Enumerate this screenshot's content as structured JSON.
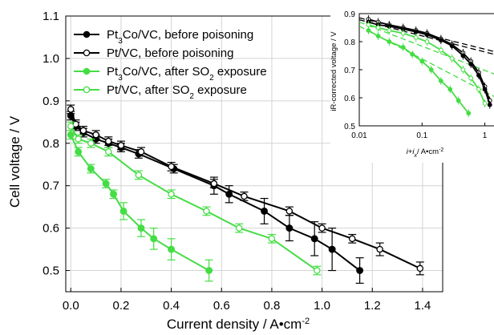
{
  "chart_data": [
    {
      "type": "line",
      "xlabel": "Current density / A•cm",
      "xlabel_sup": "-2",
      "ylabel": "Cell voltage / V",
      "xlim": [
        -0.02,
        1.48
      ],
      "ylim": [
        0.45,
        1.1
      ],
      "xticks": [
        0.0,
        0.2,
        0.4,
        0.6,
        0.8,
        1.0,
        1.2,
        1.4
      ],
      "xtick_labels": [
        "0.0",
        "0.2",
        "0.4",
        "0.6",
        "0.8",
        "1.0",
        "1.2",
        "1.4"
      ],
      "yticks": [
        0.5,
        0.6,
        0.7,
        0.8,
        0.9,
        1.0,
        1.1
      ],
      "ytick_labels": [
        "0.5",
        "0.6",
        "0.7",
        "0.8",
        "0.9",
        "1.0",
        "1.1"
      ],
      "grid": true,
      "legend_position": "top-left",
      "series": [
        {
          "name": "Pt3Co/VC, before poisoning",
          "legend": {
            "pre": "Pt",
            "sub": "3",
            "post": "Co/VC, before poisoning"
          },
          "color": "#000000",
          "marker": "filled-circle",
          "x": [
            0.0,
            0.02,
            0.05,
            0.1,
            0.15,
            0.2,
            0.27,
            0.41,
            0.57,
            0.63,
            0.77,
            0.87,
            0.97,
            1.04,
            1.15
          ],
          "y": [
            0.865,
            0.84,
            0.825,
            0.81,
            0.8,
            0.79,
            0.775,
            0.74,
            0.7,
            0.68,
            0.64,
            0.6,
            0.575,
            0.55,
            0.5
          ],
          "err": [
            0.01,
            0.01,
            0.01,
            0.01,
            0.01,
            0.01,
            0.01,
            0.01,
            0.02,
            0.02,
            0.03,
            0.03,
            0.04,
            0.05,
            0.03
          ]
        },
        {
          "name": "Pt/VC, before poisoning",
          "legend": {
            "pre": "Pt/VC, before poisoning",
            "sub": "",
            "post": ""
          },
          "color": "#000000",
          "marker": "open-circle",
          "x": [
            0.0,
            0.02,
            0.05,
            0.1,
            0.15,
            0.2,
            0.28,
            0.4,
            0.57,
            0.69,
            0.87,
            1.0,
            1.12,
            1.23,
            1.39
          ],
          "y": [
            0.88,
            0.845,
            0.83,
            0.82,
            0.805,
            0.795,
            0.78,
            0.745,
            0.705,
            0.675,
            0.64,
            0.6,
            0.575,
            0.55,
            0.505
          ],
          "err": [
            0.01,
            0.01,
            0.01,
            0.01,
            0.01,
            0.01,
            0.01,
            0.01,
            0.01,
            0.01,
            0.01,
            0.01,
            0.01,
            0.015,
            0.015
          ]
        },
        {
          "name": "Pt3Co/VC, after SO2 exposure",
          "legend": {
            "pre": "Pt",
            "sub": "3",
            "post": "Co/VC, after SO",
            "sub2": "2",
            "post2": " exposure"
          },
          "color": "#44dd44",
          "marker": "filled-circle",
          "x": [
            0.0,
            0.03,
            0.08,
            0.14,
            0.17,
            0.21,
            0.28,
            0.33,
            0.4,
            0.55
          ],
          "y": [
            0.82,
            0.78,
            0.74,
            0.705,
            0.68,
            0.64,
            0.6,
            0.575,
            0.55,
            0.5
          ],
          "err": [
            0.01,
            0.01,
            0.01,
            0.01,
            0.01,
            0.02,
            0.02,
            0.025,
            0.025,
            0.025
          ]
        },
        {
          "name": "Pt/VC, after SO2 exposure",
          "legend": {
            "pre": "Pt/VC, after SO",
            "sub": "2",
            "post": " exposure"
          },
          "color": "#44dd44",
          "marker": "open-circle",
          "x": [
            0.0,
            0.03,
            0.08,
            0.15,
            0.27,
            0.4,
            0.54,
            0.67,
            0.8,
            0.98
          ],
          "y": [
            0.84,
            0.81,
            0.8,
            0.78,
            0.725,
            0.68,
            0.64,
            0.6,
            0.575,
            0.5
          ],
          "err": [
            0.01,
            0.01,
            0.01,
            0.01,
            0.01,
            0.01,
            0.01,
            0.01,
            0.01,
            0.01
          ]
        }
      ]
    },
    {
      "type": "line",
      "xlabel": "i+i",
      "xlabel_sub": "x",
      "xlabel_post": "/ A•cm",
      "xlabel_sup": "-2",
      "ylabel": "iR-corrected voltage / V",
      "xscale": "log",
      "xlim": [
        0.01,
        1.4
      ],
      "ylim": [
        0.5,
        0.9
      ],
      "xticks": [
        0.01,
        0.1,
        1
      ],
      "xtick_labels": [
        "0.01",
        "0.1",
        "1"
      ],
      "yticks": [
        0.5,
        0.6,
        0.7,
        0.8,
        0.9
      ],
      "ytick_labels": [
        "0.5",
        "0.6",
        "0.7",
        "0.8",
        "0.9"
      ],
      "grid": false,
      "series": [
        {
          "name": "Pt/VC, before poisoning",
          "color": "#000000",
          "marker": "open-circle",
          "x": [
            0.014,
            0.02,
            0.03,
            0.05,
            0.08,
            0.12,
            0.2,
            0.3,
            0.45,
            0.6,
            0.8,
            1.0,
            1.2
          ],
          "y": [
            0.88,
            0.87,
            0.86,
            0.85,
            0.84,
            0.83,
            0.81,
            0.79,
            0.76,
            0.73,
            0.69,
            0.64,
            0.59
          ]
        },
        {
          "name": "Pt3Co/VC, before poisoning",
          "color": "#000000",
          "marker": "filled-circle",
          "x": [
            0.014,
            0.02,
            0.03,
            0.05,
            0.08,
            0.12,
            0.2,
            0.3,
            0.45,
            0.6,
            0.8,
            1.0,
            1.2
          ],
          "y": [
            0.87,
            0.86,
            0.855,
            0.845,
            0.835,
            0.825,
            0.805,
            0.785,
            0.75,
            0.72,
            0.68,
            0.63,
            0.575
          ]
        },
        {
          "name": "Pt/VC, after SO2 exposure",
          "color": "#44dd44",
          "marker": "open-circle",
          "x": [
            0.014,
            0.02,
            0.03,
            0.05,
            0.08,
            0.12,
            0.2,
            0.3,
            0.45,
            0.6,
            0.8,
            1.0
          ],
          "y": [
            0.86,
            0.85,
            0.84,
            0.83,
            0.815,
            0.8,
            0.77,
            0.74,
            0.7,
            0.67,
            0.63,
            0.58
          ]
        },
        {
          "name": "Pt3Co/VC, after SO2 exposure",
          "color": "#44dd44",
          "marker": "filled-circle",
          "x": [
            0.014,
            0.02,
            0.03,
            0.05,
            0.07,
            0.1,
            0.14,
            0.2,
            0.28,
            0.38,
            0.55
          ],
          "y": [
            0.84,
            0.82,
            0.8,
            0.78,
            0.755,
            0.73,
            0.7,
            0.66,
            0.63,
            0.59,
            0.545
          ]
        }
      ],
      "fits": [
        {
          "color": "#000000",
          "x": [
            0.01,
            1.4
          ],
          "y": [
            0.885,
            0.765
          ]
        },
        {
          "color": "#000000",
          "x": [
            0.01,
            1.4
          ],
          "y": [
            0.878,
            0.755
          ]
        },
        {
          "color": "#44dd44",
          "x": [
            0.01,
            1.4
          ],
          "y": [
            0.87,
            0.685
          ]
        },
        {
          "color": "#44dd44",
          "x": [
            0.01,
            1.4
          ],
          "y": [
            0.855,
            0.605
          ]
        }
      ]
    }
  ]
}
